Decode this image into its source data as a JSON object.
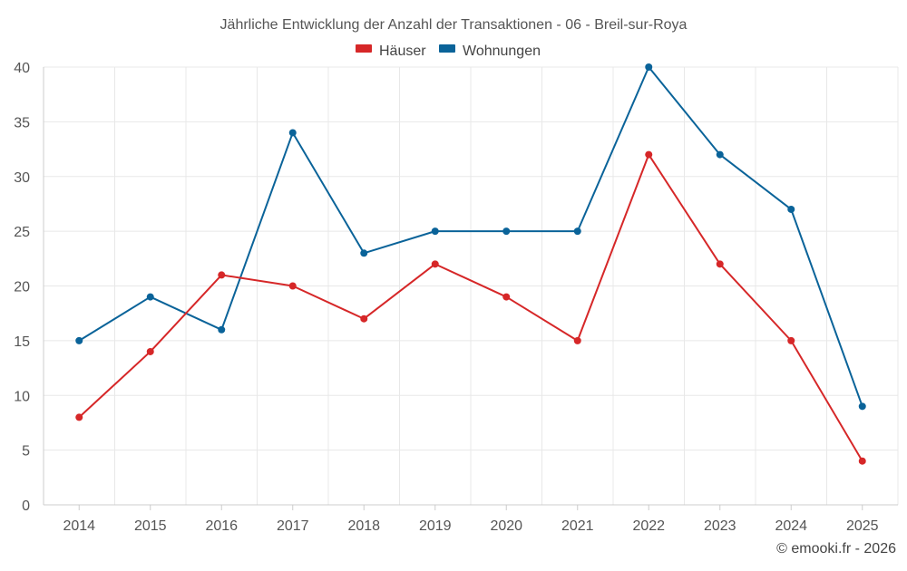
{
  "chart_data": {
    "type": "line",
    "title": "Jährliche Entwicklung der Anzahl der Transaktionen - 06 - Breil-sur-Roya",
    "categories": [
      "2014",
      "2015",
      "2016",
      "2017",
      "2018",
      "2019",
      "2020",
      "2021",
      "2022",
      "2023",
      "2024",
      "2025"
    ],
    "series": [
      {
        "name": "Häuser",
        "color": "#d62728",
        "values": [
          8,
          14,
          21,
          20,
          17,
          22,
          19,
          15,
          32,
          22,
          15,
          4
        ]
      },
      {
        "name": "Wohnungen",
        "color": "#0a6399",
        "values": [
          15,
          19,
          16,
          34,
          23,
          25,
          25,
          25,
          40,
          32,
          27,
          9
        ]
      }
    ],
    "yticks": [
      "0",
      "5",
      "10",
      "15",
      "20",
      "25",
      "30",
      "35",
      "40"
    ],
    "ylim": [
      0,
      40
    ],
    "xlabel": "",
    "ylabel": "",
    "grid": true,
    "legend_position": "top-center"
  },
  "credit": "© emooki.fr - 2026"
}
